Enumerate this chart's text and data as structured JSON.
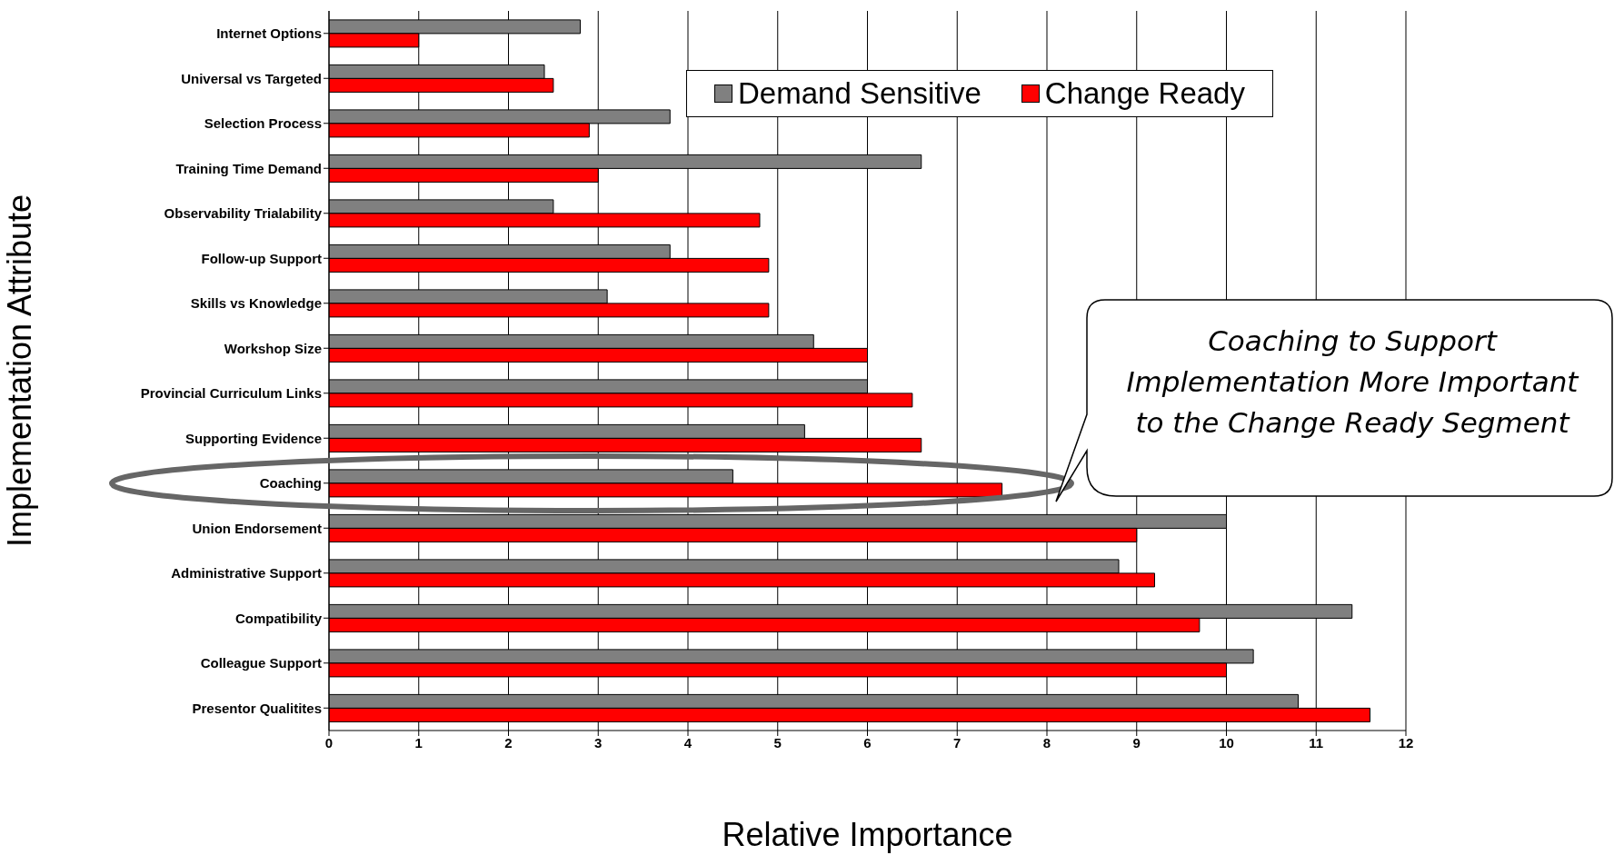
{
  "chart_data": {
    "type": "bar",
    "orientation": "horizontal",
    "xlabel": "Relative Importance",
    "ylabel": "Implementation Attribute",
    "categories": [
      "Internet Options",
      "Universal vs Targeted",
      "Selection Process",
      "Training Time Demand",
      "Observability Trialability",
      "Follow-up Support",
      "Skills vs Knowledge",
      "Workshop Size",
      "Provincial Curriculum Links",
      "Supporting Evidence",
      "Coaching",
      "Union Endorsement",
      "Administrative Support",
      "Compatibility",
      "Colleague Support",
      "Presentor Qualitites"
    ],
    "series": [
      {
        "name": "Demand Sensitive",
        "color": "#808080",
        "values": [
          2.8,
          2.4,
          3.8,
          6.6,
          2.5,
          3.8,
          3.1,
          5.4,
          6.0,
          5.3,
          4.5,
          10.0,
          8.8,
          11.4,
          10.3,
          10.8
        ]
      },
      {
        "name": "Change Ready",
        "color": "#ff0000",
        "values": [
          1.0,
          2.5,
          2.9,
          3.0,
          4.8,
          4.9,
          4.9,
          6.0,
          6.5,
          6.6,
          7.5,
          9.0,
          9.2,
          9.7,
          10.0,
          11.6
        ]
      }
    ],
    "xlim": [
      0,
      12
    ],
    "xticks": [
      0,
      1,
      2,
      3,
      4,
      5,
      6,
      7,
      8,
      9,
      10,
      11,
      12
    ],
    "grid": "x",
    "legend": "top right",
    "annotations": [
      "Coaching to Support Implementation More Important to the Change Ready Segment"
    ]
  }
}
